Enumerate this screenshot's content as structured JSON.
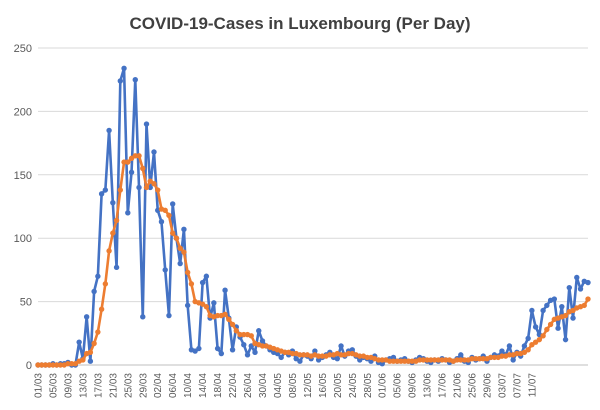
{
  "chart_data": {
    "type": "line",
    "title": "COVID-19-Cases in Luxembourg (Per Day)",
    "xlabel": "",
    "ylabel": "",
    "ylim": [
      0,
      250
    ],
    "yticks": [
      "0",
      "50",
      "100",
      "150",
      "200",
      "250"
    ],
    "xtick_labels": [
      "01/03",
      "05/03",
      "09/03",
      "13/03",
      "17/03",
      "21/03",
      "25/03",
      "29/03",
      "02/04",
      "06/04",
      "10/04",
      "14/04",
      "18/04",
      "22/04",
      "26/04",
      "30/04",
      "04/05",
      "08/05",
      "12/05",
      "16/05",
      "20/05",
      "24/05",
      "28/05",
      "01/06",
      "05/06",
      "09/06",
      "13/06",
      "17/06",
      "21/06",
      "25/06",
      "29/06",
      "03/07",
      "07/07",
      "11/07"
    ],
    "grid": "horizontal",
    "legend": "none",
    "series": [
      {
        "color": "#4472C4",
        "values": [
          0,
          0,
          0,
          0,
          1,
          0,
          1,
          1,
          2,
          0,
          0,
          18,
          5,
          38,
          3,
          58,
          70,
          135,
          138,
          185,
          128,
          77,
          224,
          234,
          120,
          152,
          225,
          140,
          38,
          190,
          140,
          168,
          122,
          113,
          75,
          39,
          127,
          100,
          80,
          107,
          47,
          12,
          11,
          13,
          65,
          70,
          37,
          49,
          13,
          9,
          59,
          37,
          12,
          30,
          22,
          16,
          8,
          15,
          10,
          27,
          19,
          15,
          12,
          10,
          9,
          6,
          10,
          8,
          11,
          5,
          3,
          8,
          7,
          5,
          11,
          4,
          6,
          8,
          10,
          6,
          5,
          15,
          7,
          11,
          12,
          7,
          4,
          6,
          5,
          3,
          7,
          2,
          1,
          4,
          5,
          6,
          3,
          4,
          5,
          3,
          2,
          4,
          6,
          5,
          3,
          2,
          4,
          3,
          5,
          4,
          2,
          3,
          5,
          8,
          3,
          2,
          6,
          4,
          5,
          7,
          3,
          6,
          8,
          7,
          11,
          8,
          15,
          4,
          10,
          7,
          15,
          21,
          43,
          30,
          24,
          43,
          47,
          51,
          52,
          29,
          46,
          20,
          61,
          37,
          69,
          60,
          66,
          65
        ]
      },
      {
        "color": "#ED7D31",
        "values": [
          0,
          0,
          0,
          0,
          0,
          0,
          0,
          0,
          1,
          1,
          1,
          3,
          4,
          9,
          10,
          17,
          26,
          44,
          64,
          90,
          104,
          114,
          138,
          160,
          160,
          163,
          165,
          165,
          155,
          140,
          145,
          143,
          138,
          123,
          122,
          118,
          104,
          100,
          92,
          89,
          73,
          64,
          50,
          49,
          48,
          46,
          39,
          38,
          39,
          39,
          40,
          36,
          32,
          27,
          24,
          24,
          24,
          23,
          17,
          16,
          15,
          15,
          14,
          13,
          12,
          11,
          10,
          10,
          9,
          9,
          8,
          8,
          8,
          7,
          8,
          7,
          7,
          7,
          8,
          8,
          9,
          8,
          8,
          9,
          9,
          8,
          7,
          7,
          6,
          6,
          5,
          4,
          4,
          4,
          3,
          3,
          3,
          3,
          3,
          3,
          3,
          3,
          4,
          4,
          4,
          4,
          4,
          4,
          4,
          4,
          4,
          3,
          4,
          4,
          4,
          4,
          5,
          5,
          5,
          5,
          5,
          6,
          6,
          6,
          7,
          7,
          8,
          8,
          9,
          9,
          10,
          12,
          16,
          18,
          20,
          23,
          28,
          32,
          36,
          37,
          38,
          39,
          42,
          43,
          45,
          46,
          47,
          52
        ]
      }
    ]
  }
}
